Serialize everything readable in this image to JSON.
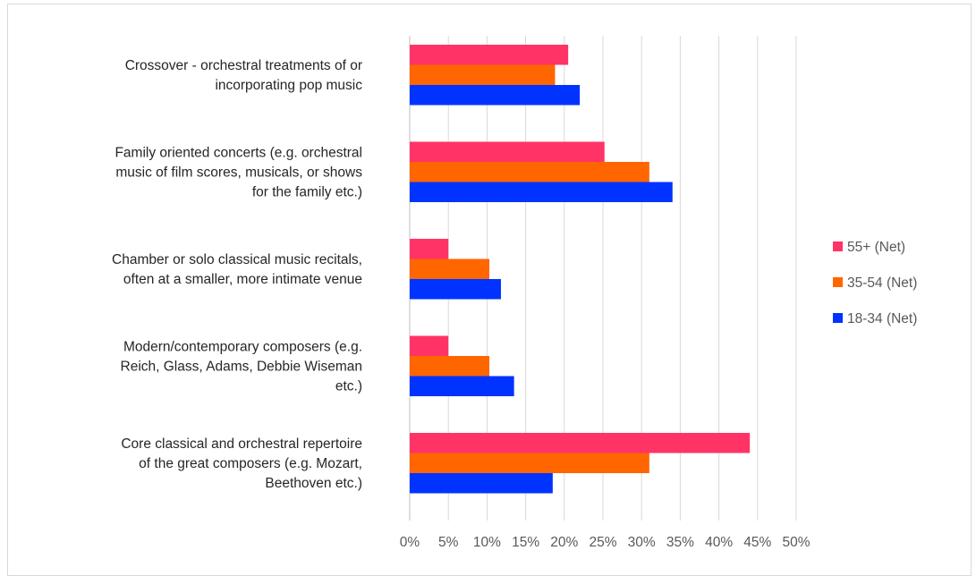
{
  "chart_data": {
    "type": "bar",
    "orientation": "horizontal",
    "categories": [
      {
        "lines": [
          "Crossover - orchestral treatments of or",
          "incorporating pop music"
        ]
      },
      {
        "lines": [
          "Family oriented concerts (e.g. orchestral",
          "music of film scores, musicals, or shows",
          "for the family etc.)"
        ]
      },
      {
        "lines": [
          "Chamber or solo classical music recitals,",
          "often at a smaller, more intimate venue"
        ]
      },
      {
        "lines": [
          "Modern/contemporary composers (e.g.",
          "Reich, Glass, Adams, Debbie Wiseman",
          "etc.)"
        ]
      },
      {
        "lines": [
          "Core classical and orchestral repertoire",
          "of the great composers (e.g. Mozart,",
          "Beethoven etc.)"
        ]
      }
    ],
    "series": [
      {
        "name": "55+ (Net)",
        "color": "#ff3366",
        "values": [
          20.5,
          25.2,
          5,
          5,
          44
        ]
      },
      {
        "name": "35-54 (Net)",
        "color": "#ff6600",
        "values": [
          18.8,
          31,
          10.3,
          10.3,
          31
        ]
      },
      {
        "name": "18-34 (Net)",
        "color": "#0033ff",
        "values": [
          22,
          34,
          11.8,
          13.5,
          18.5
        ]
      }
    ],
    "legend_order": [
      0,
      1,
      2
    ],
    "xlim": [
      0,
      50
    ],
    "xticks": [
      "0%",
      "5%",
      "10%",
      "15%",
      "20%",
      "25%",
      "30%",
      "35%",
      "40%",
      "45%",
      "50%"
    ],
    "grid": true,
    "legend_position": "right"
  }
}
